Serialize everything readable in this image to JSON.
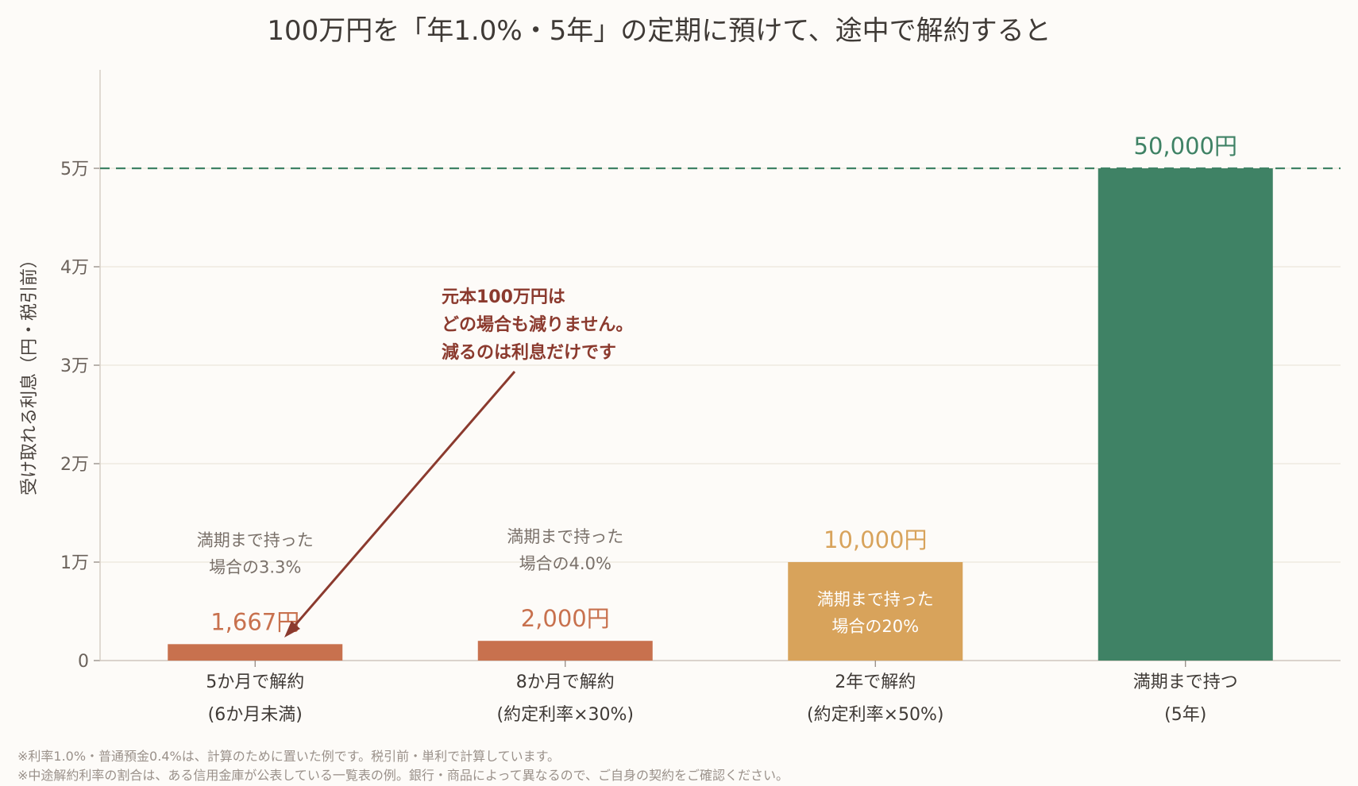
{
  "chart_data": {
    "type": "bar",
    "title": "100万円を「年1.0%・5年」の定期に預けて、途中で解約すると",
    "ylabel": "受け取れる利息（円・税引前）",
    "ylim": [
      0,
      60000
    ],
    "yticks": [
      {
        "value": 0,
        "label": "0"
      },
      {
        "value": 10000,
        "label": "1万"
      },
      {
        "value": 20000,
        "label": "2万"
      },
      {
        "value": 30000,
        "label": "3万"
      },
      {
        "value": 40000,
        "label": "4万"
      },
      {
        "value": 50000,
        "label": "5万"
      }
    ],
    "grid": true,
    "reference_line": {
      "value": 50000,
      "style": "dashed",
      "color": "#3f8265"
    },
    "bars": [
      {
        "line1": "5か月で解約",
        "line2": "(6か月未満)",
        "value": 1667,
        "value_label": "1,667円",
        "share_line1": "満期まで持った",
        "share_line2": "場合の3.3%",
        "share_inside": false,
        "color": "#c8714e",
        "label_color": "#c8714e"
      },
      {
        "line1": "8か月で解約",
        "line2": "(約定利率×30%)",
        "value": 2000,
        "value_label": "2,000円",
        "share_line1": "満期まで持った",
        "share_line2": "場合の4.0%",
        "share_inside": false,
        "color": "#c8714e",
        "label_color": "#c8714e"
      },
      {
        "line1": "2年で解約",
        "line2": "(約定利率×50%)",
        "value": 10000,
        "value_label": "10,000円",
        "share_line1": "満期まで持った",
        "share_line2": "場合の20%",
        "share_inside": true,
        "color": "#d8a35b",
        "label_color": "#d8a35b"
      },
      {
        "line1": "満期まで持つ",
        "line2": "(5年)",
        "value": 50000,
        "value_label": "50,000円",
        "share_line1": "",
        "share_line2": "",
        "share_inside": false,
        "color": "#3f8265",
        "label_color": "#3f8265"
      }
    ],
    "annotation": {
      "lines": [
        "元本100万円は",
        "どの場合も減りません。",
        "減るのは利息だけです"
      ],
      "color": "#8b3a2e"
    }
  },
  "footnotes": [
    "※利率1.0%・普通預金0.4%は、計算のために置いた例です。税引前・単利で計算しています。",
    "※中途解約利率の割合は、ある信用金庫が公表している一覧表の例。銀行・商品によって異なるので、ご自身の契約をご確認ください。"
  ]
}
